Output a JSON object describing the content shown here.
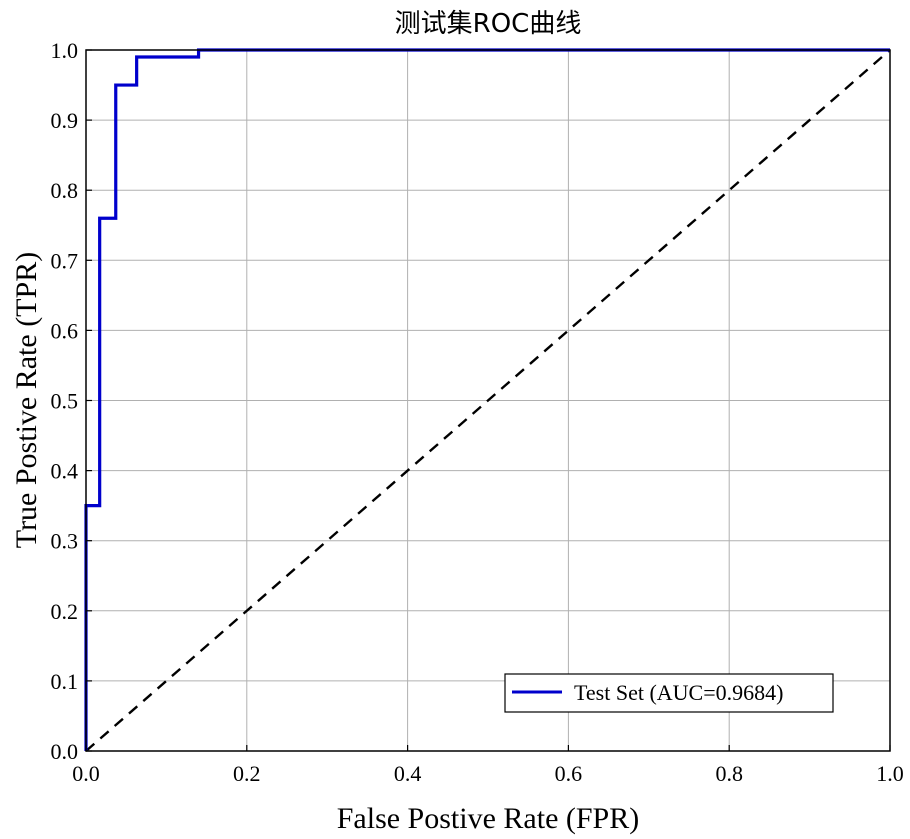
{
  "chart_data": {
    "type": "line",
    "title": "测试集ROC曲线",
    "xlabel": "False Postive Rate (FPR)",
    "ylabel": "True Postive Rate (TPR)",
    "xlim": [
      0,
      1
    ],
    "ylim": [
      0,
      1
    ],
    "x_ticks": [
      "0.0",
      "0.2",
      "0.4",
      "0.6",
      "0.8",
      "1.0"
    ],
    "y_ticks": [
      "0.0",
      "0.1",
      "0.2",
      "0.3",
      "0.4",
      "0.5",
      "0.6",
      "0.7",
      "0.8",
      "0.9",
      "1.0"
    ],
    "grid": true,
    "legend_position": "bottom-right",
    "series": [
      {
        "name": "Test Set (AUC=0.9684)",
        "color": "#0000cc",
        "style": "solid",
        "points": [
          [
            0.0,
            0.0
          ],
          [
            0.0,
            0.35
          ],
          [
            0.017,
            0.35
          ],
          [
            0.017,
            0.76
          ],
          [
            0.037,
            0.76
          ],
          [
            0.037,
            0.95
          ],
          [
            0.063,
            0.95
          ],
          [
            0.063,
            0.99
          ],
          [
            0.14,
            0.99
          ],
          [
            0.14,
            1.0
          ],
          [
            1.0,
            1.0
          ]
        ]
      },
      {
        "color": "#000000",
        "style": "dashed",
        "points": [
          [
            0,
            0
          ],
          [
            1,
            1
          ]
        ]
      }
    ]
  }
}
